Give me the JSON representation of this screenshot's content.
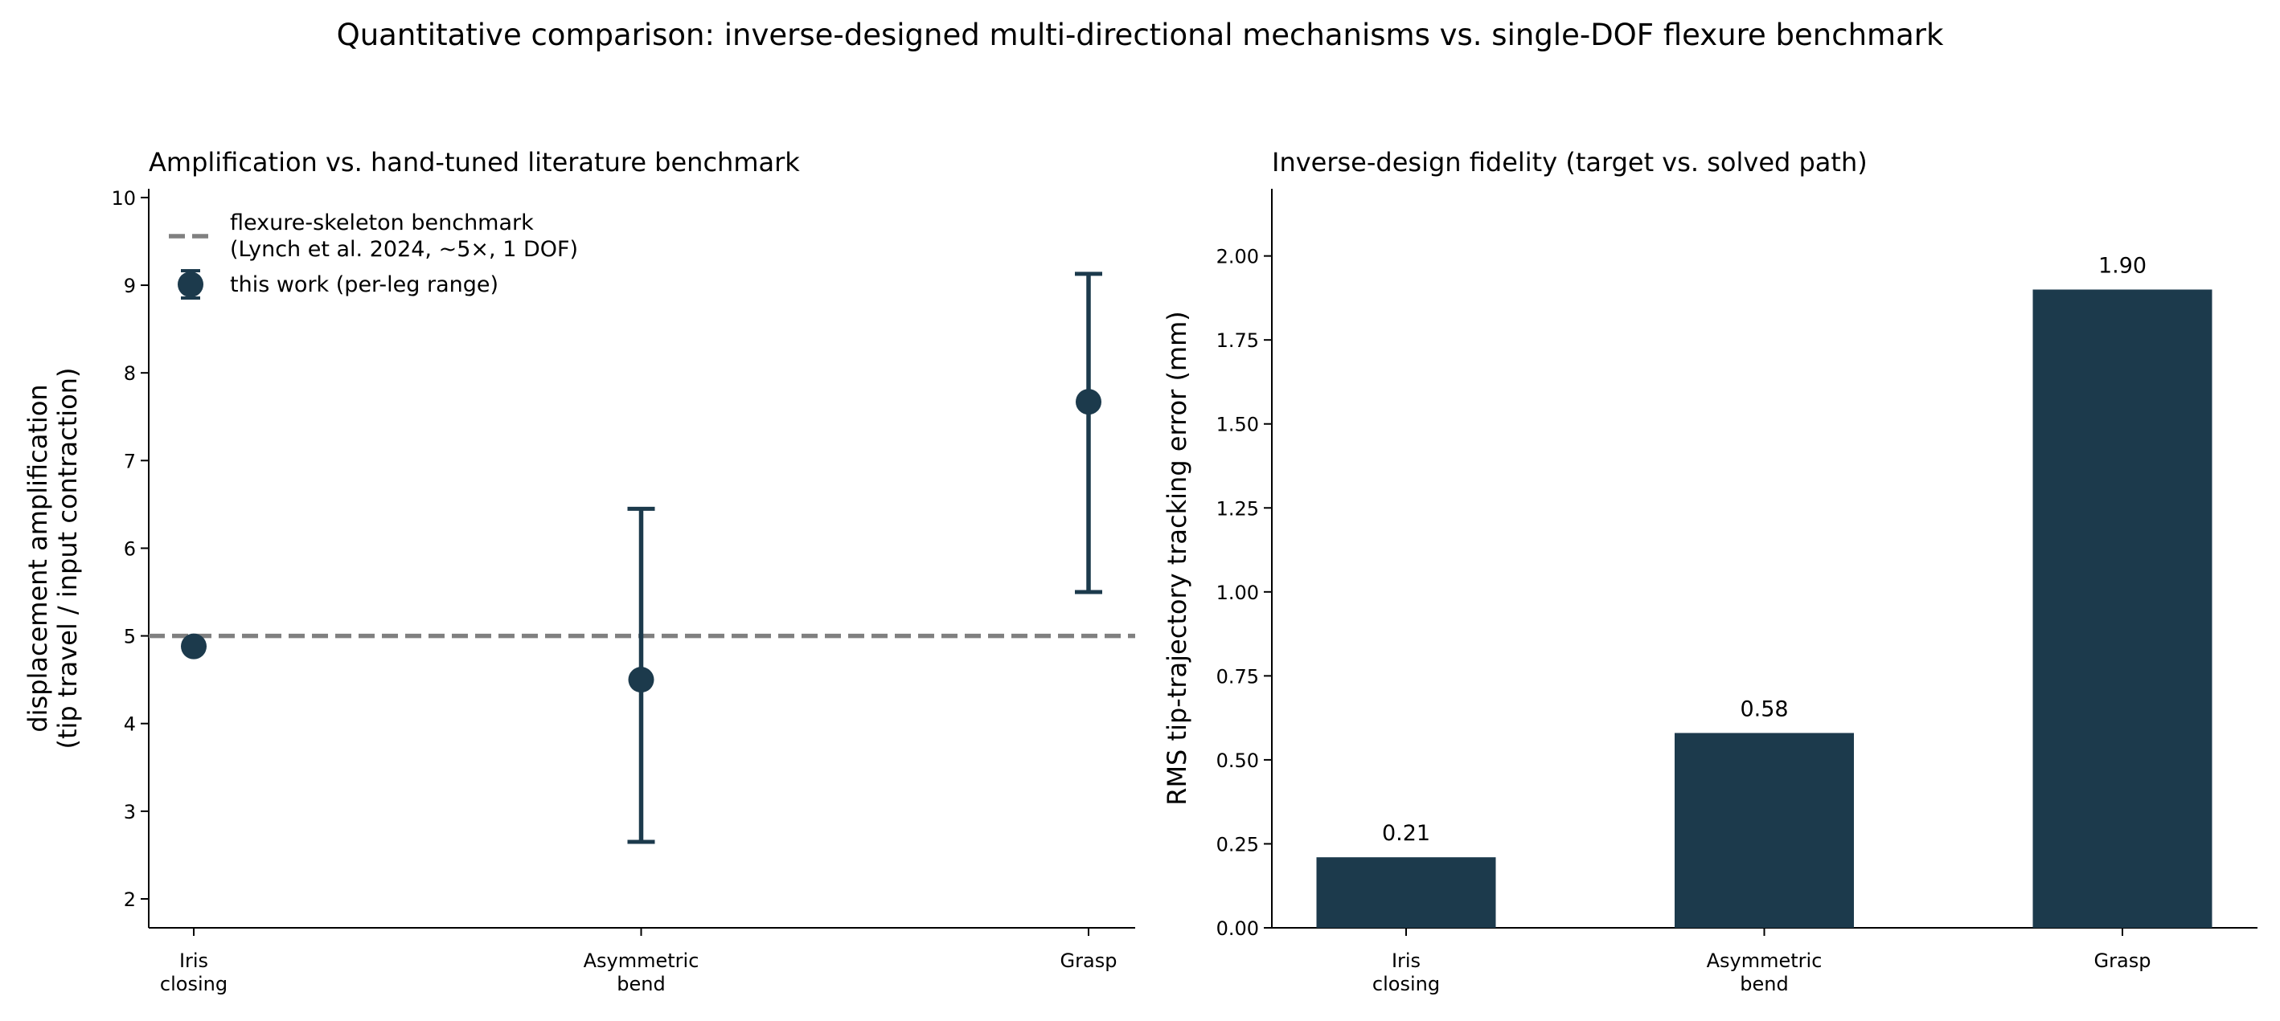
{
  "figure": {
    "suptitle": "Quantitative comparison: inverse-designed multi-directional mechanisms vs. single-DOF flexure benchmark"
  },
  "colors": {
    "series": "#1c3a4c",
    "benchmark": "#808080",
    "axis": "#000000"
  },
  "chart_data": [
    {
      "type": "scatter",
      "title": "Amplification vs. hand-tuned literature benchmark",
      "xlabel": "",
      "ylabel": [
        "displacement amplification",
        "(tip travel / input contraction)"
      ],
      "categories": [
        [
          "Iris",
          "closing"
        ],
        [
          "Asymmetric",
          "bend"
        ],
        [
          "Grasp"
        ]
      ],
      "ylim": [
        1.67,
        10.1
      ],
      "yticks": [
        2,
        3,
        4,
        5,
        6,
        7,
        8,
        9,
        10
      ],
      "grid": false,
      "legend_position": "top-left",
      "series": [
        {
          "name": "this work (per-leg range)",
          "values": [
            4.88,
            4.5,
            7.67
          ],
          "error_low": [
            null,
            2.65,
            5.5
          ],
          "error_high": [
            null,
            6.45,
            9.13
          ]
        }
      ],
      "reference_lines": [
        {
          "value": 5,
          "style": "dashed",
          "name": [
            "flexure-skeleton benchmark",
            "(Lynch et al. 2024, ~5×, 1 DOF)"
          ]
        }
      ]
    },
    {
      "type": "bar",
      "title": "Inverse-design fidelity (target vs. solved path)",
      "xlabel": "",
      "ylabel": "RMS tip-trajectory tracking error (mm)",
      "categories": [
        [
          "Iris",
          "closing"
        ],
        [
          "Asymmetric",
          "bend"
        ],
        [
          "Grasp"
        ]
      ],
      "values": [
        0.21,
        0.58,
        1.9
      ],
      "data_labels": [
        "0.21",
        "0.58",
        "1.90"
      ],
      "ylim": [
        0,
        2.2
      ],
      "yticks": [
        0.0,
        0.25,
        0.5,
        0.75,
        1.0,
        1.25,
        1.5,
        1.75,
        2.0
      ],
      "ytick_labels": [
        "0.00",
        "0.25",
        "0.50",
        "0.75",
        "1.00",
        "1.25",
        "1.50",
        "1.75",
        "2.00"
      ],
      "grid": false
    }
  ]
}
